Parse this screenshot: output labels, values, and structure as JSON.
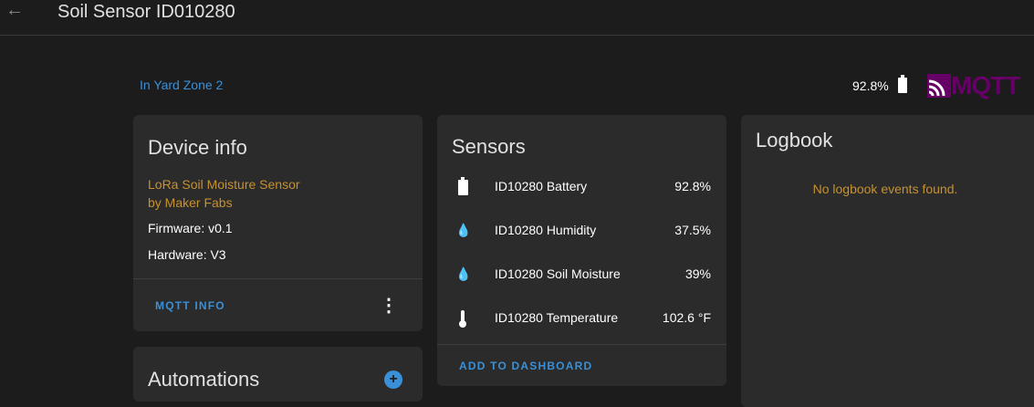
{
  "header": {
    "title": "Soil Sensor ID010280",
    "back_icon": "arrow-left-icon"
  },
  "area": "In Yard Zone 2",
  "battery": {
    "value": "92.8%",
    "icon": "battery-icon"
  },
  "logo": "MQTT",
  "device_info": {
    "title": "Device info",
    "model": "LoRa Soil Moisture Sensor",
    "manufacturer": "by Maker Fabs",
    "firmware": "Firmware: v0.1",
    "hardware": "Hardware: V3",
    "button": "MQTT INFO"
  },
  "sensors": {
    "title": "Sensors",
    "items": [
      {
        "name": "ID10280 Battery",
        "value": "92.8%",
        "icon": "battery-icon"
      },
      {
        "name": "ID10280 Humidity",
        "value": "37.5%",
        "icon": "water-percent-icon"
      },
      {
        "name": "ID10280 Soil Moisture",
        "value": "39%",
        "icon": "water-percent-icon"
      },
      {
        "name": "ID10280 Temperature",
        "value": "102.6 °F",
        "icon": "thermometer-icon"
      }
    ],
    "button": "ADD TO DASHBOARD"
  },
  "logbook": {
    "title": "Logbook",
    "empty": "No logbook events found."
  },
  "automations": {
    "title": "Automations"
  },
  "colors": {
    "accent": "#3b8fd6",
    "warning": "#c6912f",
    "mqtt": "#660066"
  }
}
